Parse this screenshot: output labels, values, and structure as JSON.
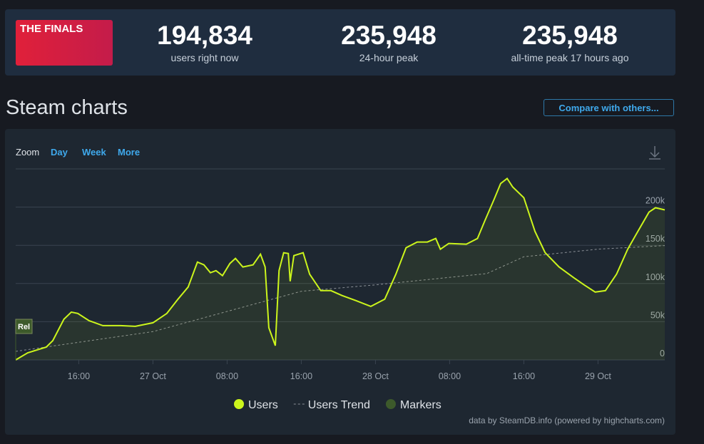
{
  "header": {
    "logo": "THE FINALS",
    "stats": [
      {
        "value": "194,834",
        "label": "users right now"
      },
      {
        "value": "235,948",
        "label": "24-hour peak"
      },
      {
        "value": "235,948",
        "label": "all-time peak 17 hours ago"
      }
    ]
  },
  "section_title": "Steam charts",
  "compare_button": "Compare with others...",
  "zoom": {
    "label": "Zoom",
    "options": [
      "Day",
      "Week",
      "More"
    ]
  },
  "credits": "data by SteamDB.info (powered by highcharts.com)",
  "chart_data": {
    "type": "line",
    "xlim": [
      -14.8,
      55.2
    ],
    "xticks": [
      {
        "value": -8,
        "label": "16:00"
      },
      {
        "value": 0,
        "label": "27 Oct"
      },
      {
        "value": 8,
        "label": "08:00"
      },
      {
        "value": 16,
        "label": "16:00"
      },
      {
        "value": 24,
        "label": "28 Oct"
      },
      {
        "value": 32,
        "label": "08:00"
      },
      {
        "value": 40,
        "label": "16:00"
      },
      {
        "value": 48,
        "label": "29 Oct"
      }
    ],
    "ylim": [
      0,
      250000
    ],
    "yticks": [
      0,
      {
        "value": 50000,
        "label": "50k"
      },
      {
        "value": 100000,
        "label": "100k"
      },
      {
        "value": 150000,
        "label": "150k"
      },
      {
        "value": 200000,
        "label": "200k"
      }
    ],
    "grid": true,
    "series": [
      {
        "name": "Users",
        "color": "#ccf51c",
        "x": [
          -14.8,
          -13.5,
          -11.5,
          -10.8,
          -9.6,
          -8.8,
          -8.1,
          -6.9,
          -5.4,
          -3.5,
          -1.9,
          0,
          1.5,
          2.7,
          3.8,
          4.8,
          5.5,
          6.2,
          6.8,
          7.5,
          8.3,
          8.9,
          9.7,
          10.8,
          11.6,
          12.1,
          12.5,
          13.2,
          13.6,
          14.1,
          14.6,
          14.8,
          15.2,
          16.2,
          16.9,
          18.1,
          19.2,
          20.4,
          21.9,
          23.5,
          25.0,
          26.2,
          27.3,
          28.5,
          29.6,
          30.5,
          31.0,
          31.9,
          33.8,
          35.0,
          35.8,
          36.8,
          37.5,
          38.2,
          38.8,
          40.0,
          41.2,
          42.3,
          43.8,
          45.4,
          46.5,
          47.7,
          48.8,
          50.0,
          51.2,
          52.3,
          53.5,
          54.2,
          55.2
        ],
        "values": [
          0,
          9350,
          16800,
          25200,
          53300,
          62600,
          60800,
          51400,
          44900,
          44900,
          43900,
          48600,
          60800,
          79500,
          95400,
          128100,
          124400,
          114100,
          116900,
          110300,
          126200,
          132800,
          121600,
          124400,
          138400,
          121600,
          42100,
          18700,
          116900,
          140300,
          139300,
          102900,
          136500,
          140300,
          112200,
          90700,
          90700,
          84200,
          77600,
          70100,
          79500,
          112200,
          146800,
          154300,
          154300,
          159000,
          144900,
          152400,
          151500,
          159000,
          182300,
          210400,
          230900,
          237500,
          226300,
          212300,
          168300,
          140300,
          121600,
          107500,
          98200,
          88800,
          90700,
          112200,
          144900,
          168300,
          193500,
          199200,
          196400
        ]
      },
      {
        "name": "Users Trend",
        "color": "#8a8f96",
        "dashed": true,
        "x": [
          -14.8,
          0,
          16,
          24,
          36,
          40,
          48,
          55.2
        ],
        "values": [
          11200,
          37000,
          89800,
          98200,
          113000,
          135000,
          145000,
          149600
        ]
      }
    ],
    "markers": {
      "name": "Markers",
      "color": "#3d5a2b",
      "items": [
        {
          "label": "Rel",
          "x": -14.8
        }
      ]
    },
    "legend": "bottom"
  }
}
